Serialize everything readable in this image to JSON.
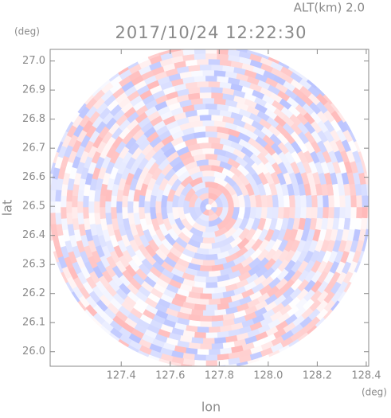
{
  "chart_data": {
    "type": "radar-ppi",
    "title": "2017/10/24 12:22:30",
    "altitude_label": "ALT(km) 2.0",
    "y_unit": "(deg)",
    "x_unit": "(deg)",
    "xlabel": "lon",
    "ylabel": "lat",
    "xlim": [
      127.11,
      128.41
    ],
    "ylim": [
      25.95,
      27.04
    ],
    "xticks": [
      127.4,
      127.6,
      127.8,
      {
        "value": 128,
        "label": "128.0"
      },
      128.2,
      128.4
    ],
    "yticks": [
      {
        "value": 26,
        "label": "26.0"
      },
      26.1,
      26.2,
      26.3,
      26.4,
      26.5,
      26.6,
      26.7,
      26.8,
      26.9,
      {
        "value": 27,
        "label": "27.0"
      }
    ]
  }
}
